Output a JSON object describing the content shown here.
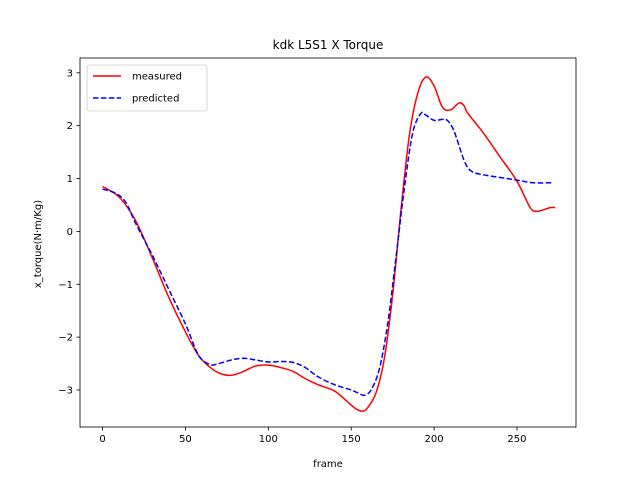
{
  "chart_data": {
    "type": "line",
    "title": "kdk L5S1 X Torque",
    "xlabel": "frame",
    "ylabel": "x_torque(N·m/Kg)",
    "xlim": [
      -13.6,
      285.6
    ],
    "ylim": [
      -3.7,
      3.28
    ],
    "xticks": [
      0,
      50,
      100,
      150,
      200,
      250
    ],
    "yticks": [
      -3,
      -2,
      -1,
      0,
      1,
      2,
      3
    ],
    "xtick_labels": [
      "0",
      "50",
      "100",
      "150",
      "200",
      "250"
    ],
    "ytick_labels": [
      "−3",
      "−2",
      "−1",
      "0",
      "1",
      "2",
      "3"
    ],
    "grid": false,
    "legend_position": "top-left",
    "series": [
      {
        "name": "measured",
        "color": "#ff0000",
        "style": "solid",
        "x": [
          0,
          10,
          20,
          30,
          40,
          50,
          58,
          66,
          72,
          78,
          85,
          92,
          100,
          108,
          115,
          122,
          130,
          140,
          148,
          153,
          157,
          160,
          165,
          170,
          175,
          180,
          185,
          190,
          195,
          200,
          205,
          210,
          215,
          218,
          220,
          225,
          230,
          240,
          250,
          258,
          262,
          265,
          270,
          273
        ],
        "y": [
          0.85,
          0.65,
          0.2,
          -0.5,
          -1.25,
          -1.9,
          -2.35,
          -2.6,
          -2.7,
          -2.72,
          -2.65,
          -2.55,
          -2.53,
          -2.58,
          -2.65,
          -2.78,
          -2.9,
          -3.02,
          -3.23,
          -3.36,
          -3.4,
          -3.33,
          -3.05,
          -2.4,
          -1.2,
          0.4,
          1.8,
          2.6,
          2.92,
          2.75,
          2.35,
          2.3,
          2.43,
          2.38,
          2.25,
          2.05,
          1.85,
          1.4,
          0.95,
          0.45,
          0.38,
          0.4,
          0.45,
          0.45
        ]
      },
      {
        "name": "predicted",
        "color": "#0000ff",
        "style": "dashed",
        "x": [
          0,
          8,
          14,
          20,
          30,
          40,
          50,
          58,
          65,
          70,
          78,
          85,
          92,
          100,
          108,
          115,
          122,
          130,
          140,
          150,
          155,
          158,
          162,
          167,
          172,
          177,
          182,
          187,
          192,
          195,
          200,
          205,
          208,
          212,
          218,
          222,
          228,
          240,
          250,
          260,
          272
        ],
        "y": [
          0.8,
          0.72,
          0.55,
          0.15,
          -0.45,
          -1.1,
          -1.75,
          -2.35,
          -2.52,
          -2.5,
          -2.43,
          -2.4,
          -2.43,
          -2.47,
          -2.46,
          -2.48,
          -2.57,
          -2.75,
          -2.9,
          -3.0,
          -3.07,
          -3.1,
          -3.0,
          -2.6,
          -1.75,
          -0.5,
          0.8,
          1.85,
          2.23,
          2.2,
          2.1,
          2.12,
          2.1,
          1.9,
          1.35,
          1.15,
          1.08,
          1.02,
          0.97,
          0.92,
          0.92
        ]
      }
    ]
  }
}
